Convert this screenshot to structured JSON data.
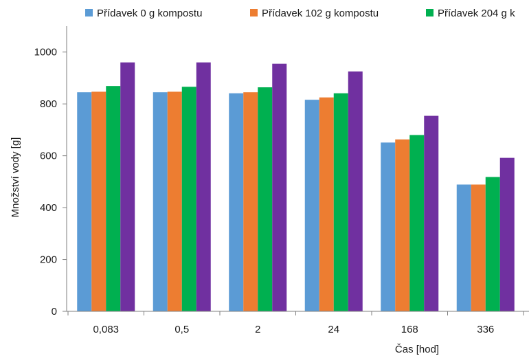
{
  "chart_data": {
    "type": "bar",
    "categories": [
      "0,083",
      "0,5",
      "2",
      "24",
      "168",
      "336"
    ],
    "series": [
      {
        "name": "Přídavek 0 g kompostu",
        "color": "#5b9bd5",
        "values": [
          845,
          845,
          841,
          816,
          651,
          489
        ]
      },
      {
        "name": "Přídavek 102 g kompostu",
        "color": "#ed7d31",
        "values": [
          847,
          847,
          845,
          825,
          663,
          489
        ]
      },
      {
        "name": "Přídavek 204 g k",
        "color": "#00b050",
        "values": [
          869,
          866,
          864,
          841,
          680,
          518
        ]
      },
      {
        "name": "",
        "color": "#7030a0",
        "values": [
          960,
          960,
          955,
          925,
          754,
          592
        ]
      }
    ],
    "xlabel": "Čas [hod]",
    "ylabel": "Množství vody [g]",
    "ylim": [
      0,
      1100
    ],
    "yticks": [
      0,
      200,
      400,
      600,
      800,
      1000
    ],
    "grid": false,
    "legend_position": "top"
  }
}
